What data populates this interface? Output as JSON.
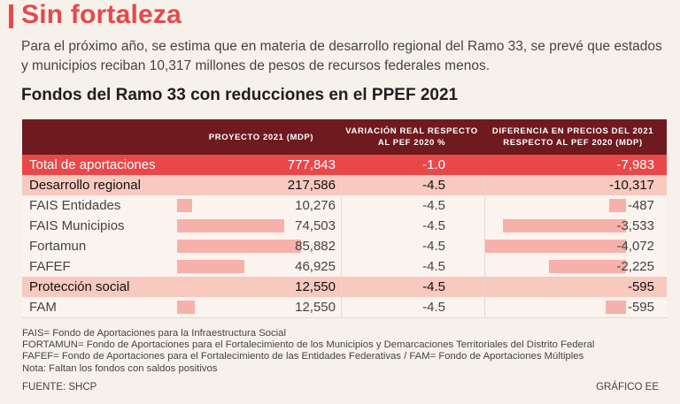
{
  "title": "Sin fortaleza",
  "subtitle": "Para el próximo año, se estima que en materia de desarrollo regional del Ramo 33, se prevé que estados y municipios reciban 10,317 millones de pesos de recursos federales menos.",
  "table_title": "Fondos del Ramo 33 con reducciones en el PPEF 2021",
  "columns": {
    "proyecto": "Proyecto 2021 (mdp)",
    "variacion": "Variación real respecto al PEF 2020 %",
    "diferencia": "Diferencia en precios del 2021 respecto al PEF 2020 (mdp)"
  },
  "rows": [
    {
      "name": "Total de aportaciones",
      "proyecto": "777,843",
      "variacion": "-1.0",
      "diferencia": "-7,983",
      "kind": "total"
    },
    {
      "name": "Desarrollo regional",
      "proyecto": "217,586",
      "variacion": "-4.5",
      "diferencia": "-10,317",
      "kind": "group"
    },
    {
      "name": "FAIS Entidades",
      "proyecto": "10,276",
      "variacion": "-4.5",
      "diferencia": "-487",
      "kind": "item",
      "proyecto_value": 10276,
      "diferencia_value": -487
    },
    {
      "name": "FAIS Municipios",
      "proyecto": "74,503",
      "variacion": "-4.5",
      "diferencia": "-3,533",
      "kind": "item",
      "proyecto_value": 74503,
      "diferencia_value": -3533
    },
    {
      "name": "Fortamun",
      "proyecto": "85,882",
      "variacion": "-4.5",
      "diferencia": "-4,072",
      "kind": "item",
      "proyecto_value": 85882,
      "diferencia_value": -4072
    },
    {
      "name": "FAFEF",
      "proyecto": "46,925",
      "variacion": "-4.5",
      "diferencia": "-2,225",
      "kind": "item",
      "proyecto_value": 46925,
      "diferencia_value": -2225
    },
    {
      "name": "Protección social",
      "proyecto": "12,550",
      "variacion": "-4.5",
      "diferencia": "-595",
      "kind": "group"
    },
    {
      "name": "FAM",
      "proyecto": "12,550",
      "variacion": "-4.5",
      "diferencia": "-595",
      "kind": "item",
      "proyecto_value": 12550,
      "diferencia_value": -595
    }
  ],
  "notes": [
    "FAIS= Fondo de Aportaciones para la Infraestructura Social",
    "FORTAMUN= Fondo de Aportaciones para el Fortalecimiento de los Municipios y Demarcaciones Territoriales del Distrito Federal",
    "FAFEF= Fondo de Aportaciones para el Fortalecimiento de las Entidades Federativas / FAM= Fondo de Aportaciones Múltiples",
    "Nota: Faltan los fondos con saldos positivos"
  ],
  "source": "FUENTE: SHCP",
  "credit": "GRÁFICO EE",
  "colors": {
    "accent": "#e8484a",
    "header": "#6e1a1f",
    "group_row": "#f7c9bf",
    "bar": "#f6b1aa"
  }
}
